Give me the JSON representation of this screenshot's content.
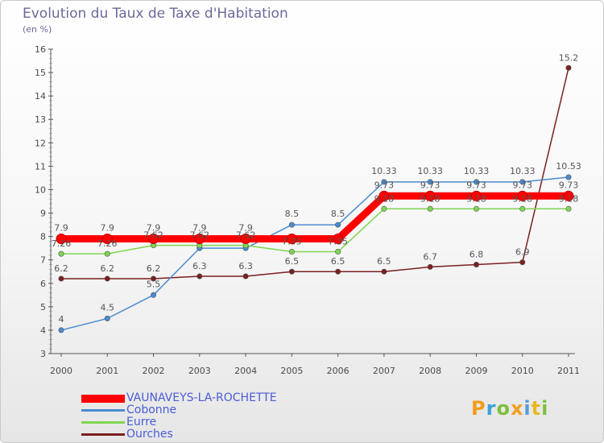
{
  "header": {
    "title": "Evolution du Taux de Taxe d'Habitation",
    "unit": "(en %)"
  },
  "logo": {
    "letters": [
      "P",
      "r",
      "o",
      "x",
      "i",
      "t",
      "i"
    ],
    "colors": [
      "#f29c1d",
      "#3aa3d9",
      "#7cbf3a",
      "#f0a020",
      "#5a9ad8",
      "#e8b820",
      "#80c040"
    ]
  },
  "chart_data": {
    "type": "line",
    "title": "Evolution du Taux de Taxe d'Habitation",
    "ylabel": "(en %)",
    "xlabel": "",
    "ylim": [
      3,
      16
    ],
    "y_ticks": [
      "3",
      "4",
      "5",
      "6",
      "7",
      "8",
      "9",
      "10",
      "11",
      "12",
      "13",
      "14",
      "15",
      "16"
    ],
    "x": [
      "2000",
      "2001",
      "2002",
      "2003",
      "2004",
      "2005",
      "2006",
      "2007",
      "2008",
      "2009",
      "2010",
      "2011"
    ],
    "grid": false,
    "series": [
      {
        "name": "VAUNAVEYS-LA-ROCHETTE",
        "color": "#ff0000",
        "values": [
          7.9,
          7.9,
          7.9,
          7.9,
          7.9,
          7.9,
          7.9,
          9.73,
          9.73,
          9.73,
          9.73,
          9.73
        ],
        "labels": [
          "7.9",
          "7.9",
          "7.9",
          "7.9",
          "7.9",
          "",
          "",
          "9.73",
          "9.73",
          "9.73",
          "9.73",
          "9.73"
        ]
      },
      {
        "name": "Cobonne",
        "color": "#4a8cd0",
        "values": [
          4,
          4.5,
          5.5,
          7.5,
          7.5,
          8.5,
          8.5,
          10.33,
          10.33,
          10.33,
          10.33,
          10.53
        ],
        "labels": [
          "4",
          "4.5",
          "5.5",
          "",
          "",
          "8.5",
          "8.5",
          "10.33",
          "10.33",
          "10.33",
          "10.33",
          "10.53"
        ]
      },
      {
        "name": "Eurre",
        "color": "#7fd650",
        "values": [
          7.26,
          7.26,
          7.62,
          7.62,
          7.62,
          7.35,
          7.35,
          9.18,
          9.18,
          9.18,
          9.18,
          9.18
        ],
        "labels": [
          "7.26",
          "7.26",
          "7.62",
          "7.62",
          "7.62",
          "7.35",
          "7.35",
          "9.18",
          "9.18",
          "9.18",
          "9.18",
          "9.18"
        ]
      },
      {
        "name": "Ourches",
        "color": "#7a1f1f",
        "values": [
          6.2,
          6.2,
          6.2,
          6.3,
          6.3,
          6.5,
          6.5,
          6.5,
          6.7,
          6.8,
          6.9,
          15.2
        ],
        "labels": [
          "6.2",
          "6.2",
          "6.2",
          "6.3",
          "6.3",
          "6.5",
          "6.5",
          "6.5",
          "6.7",
          "6.8",
          "6.9",
          "15.2"
        ]
      }
    ],
    "legend": [
      {
        "label": "VAUNAVEYS-LA-ROCHETTE",
        "color": "#ff0000"
      },
      {
        "label": "Cobonne",
        "color": "#4a8cd0"
      },
      {
        "label": "Eurre",
        "color": "#7fd650"
      },
      {
        "label": "Ourches",
        "color": "#7a1f1f"
      }
    ]
  }
}
